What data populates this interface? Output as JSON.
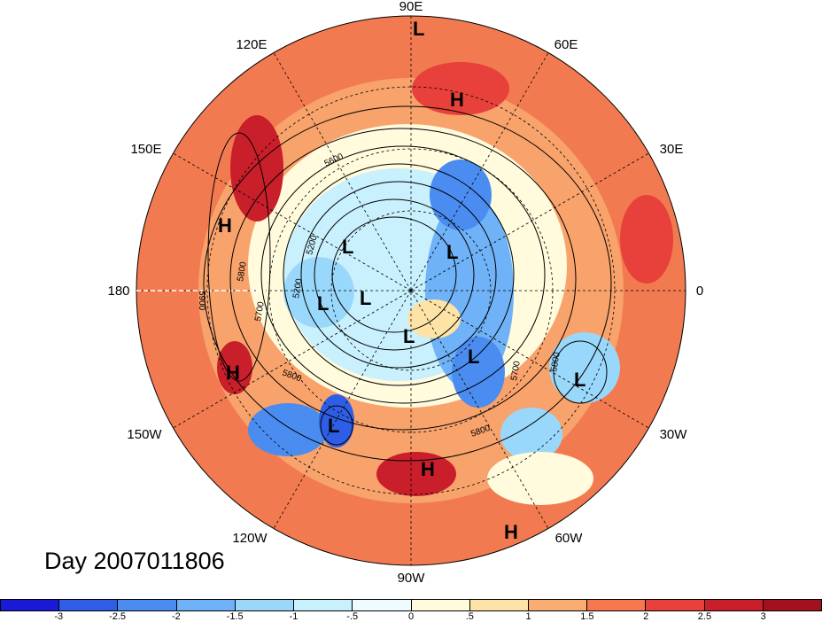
{
  "title": "Day 2007011806",
  "longitude_labels": [
    {
      "text": "90E",
      "pos": "top"
    },
    {
      "text": "60E",
      "pos": "top-right"
    },
    {
      "text": "120E",
      "pos": "top-left"
    },
    {
      "text": "30E",
      "pos": "right-upper"
    },
    {
      "text": "150E",
      "pos": "left-upper"
    },
    {
      "text": "0",
      "pos": "right"
    },
    {
      "text": "180",
      "pos": "left"
    },
    {
      "text": "30W",
      "pos": "right-lower"
    },
    {
      "text": "150W",
      "pos": "left-lower"
    },
    {
      "text": "60W",
      "pos": "bottom-right"
    },
    {
      "text": "120W",
      "pos": "bottom-left"
    },
    {
      "text": "90W",
      "pos": "bottom"
    }
  ],
  "contour_labels": [
    "5900",
    "5800",
    "5700",
    "5200",
    "5200",
    "5600",
    "5800",
    "5700",
    "5800",
    "5800"
  ],
  "pressure_centers": [
    {
      "type": "L",
      "region": "north-pacific-top"
    },
    {
      "type": "H",
      "region": "siberia"
    },
    {
      "type": "H",
      "region": "west-pacific"
    },
    {
      "type": "H",
      "region": "central-pacific"
    },
    {
      "type": "L",
      "region": "arctic-1"
    },
    {
      "type": "L",
      "region": "arctic-2"
    },
    {
      "type": "L",
      "region": "arctic-3"
    },
    {
      "type": "L",
      "region": "arctic-4"
    },
    {
      "type": "L",
      "region": "hudson-bay"
    },
    {
      "type": "L",
      "region": "north-atlantic"
    },
    {
      "type": "L",
      "region": "azores"
    },
    {
      "type": "L",
      "region": "gulf-of-alaska"
    },
    {
      "type": "H",
      "region": "gulf-of-mexico"
    },
    {
      "type": "H",
      "region": "tropical-atlantic"
    }
  ],
  "colorbar": {
    "labels": [
      "-3",
      "-2.5",
      "-2",
      "-1.5",
      "-1",
      "-.5",
      "0",
      ".5",
      "1",
      "1.5",
      "2",
      "2.5",
      "3"
    ],
    "colors": [
      "#1a1ad6",
      "#2f5ee6",
      "#4b8cf0",
      "#6fb2f7",
      "#9ad8fb",
      "#c9f0fd",
      "#eefcff",
      "#fffbdc",
      "#fde3a6",
      "#f9ad73",
      "#f5784f",
      "#e8403a",
      "#c91f2a",
      "#a3101f"
    ]
  }
}
